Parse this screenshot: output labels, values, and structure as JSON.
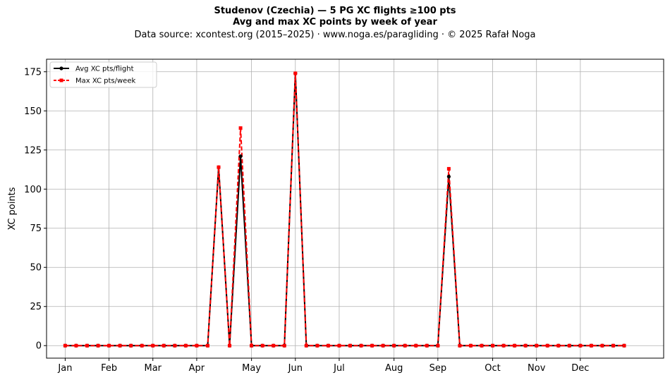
{
  "chart_data": {
    "type": "line",
    "title_lines": [
      "Studenov (Czechia)  —  5 PG XC flights ≥100 pts",
      "Avg and max XC points by week of year"
    ],
    "subtitle": "Data source: xcontest.org (2015–2025)  ·  www.noga.es/paragliding  ·  © 2025 Rafał Noga",
    "xlabel": "",
    "ylabel": "XC points",
    "ylim": [
      -8,
      183
    ],
    "xlim": [
      -1.7,
      54.6
    ],
    "y_ticks": [
      0,
      25,
      50,
      75,
      100,
      125,
      150,
      175
    ],
    "x_ticks": [
      {
        "label": "Jan",
        "pos": 0
      },
      {
        "label": "Feb",
        "pos": 4
      },
      {
        "label": "Mar",
        "pos": 8
      },
      {
        "label": "Apr",
        "pos": 12
      },
      {
        "label": "May",
        "pos": 17
      },
      {
        "label": "Jun",
        "pos": 21
      },
      {
        "label": "Jul",
        "pos": 25
      },
      {
        "label": "Aug",
        "pos": 30
      },
      {
        "label": "Sep",
        "pos": 34
      },
      {
        "label": "Oct",
        "pos": 39
      },
      {
        "label": "Nov",
        "pos": 43
      },
      {
        "label": "Dec",
        "pos": 47
      }
    ],
    "grid": true,
    "legend_position": "top-left",
    "x": [
      0,
      1,
      2,
      3,
      4,
      5,
      6,
      7,
      8,
      9,
      10,
      11,
      12,
      13,
      14,
      15,
      16,
      17,
      18,
      19,
      20,
      21,
      22,
      23,
      24,
      25,
      26,
      27,
      28,
      29,
      30,
      31,
      32,
      33,
      34,
      35,
      36,
      37,
      38,
      39,
      40,
      41,
      42,
      43,
      44,
      45,
      46,
      47,
      48,
      49,
      50,
      51
    ],
    "series": [
      {
        "name": "Avg XC pts/flight",
        "color": "#000000",
        "style": "solid",
        "marker": "circle",
        "values": [
          0,
          0,
          0,
          0,
          0,
          0,
          0,
          0,
          0,
          0,
          0,
          0,
          0,
          0,
          114,
          0,
          121,
          0,
          0,
          0,
          0,
          174,
          0,
          0,
          0,
          0,
          0,
          0,
          0,
          0,
          0,
          0,
          0,
          0,
          0,
          108,
          0,
          0,
          0,
          0,
          0,
          0,
          0,
          0,
          0,
          0,
          0,
          0,
          0,
          0,
          0,
          0
        ]
      },
      {
        "name": "Max XC pts/week",
        "color": "#ff0000",
        "style": "dashed",
        "marker": "square",
        "values": [
          0,
          0,
          0,
          0,
          0,
          0,
          0,
          0,
          0,
          0,
          0,
          0,
          0,
          0,
          114,
          0,
          139,
          0,
          0,
          0,
          0,
          174,
          0,
          0,
          0,
          0,
          0,
          0,
          0,
          0,
          0,
          0,
          0,
          0,
          0,
          113,
          0,
          0,
          0,
          0,
          0,
          0,
          0,
          0,
          0,
          0,
          0,
          0,
          0,
          0,
          0,
          0
        ]
      }
    ]
  }
}
